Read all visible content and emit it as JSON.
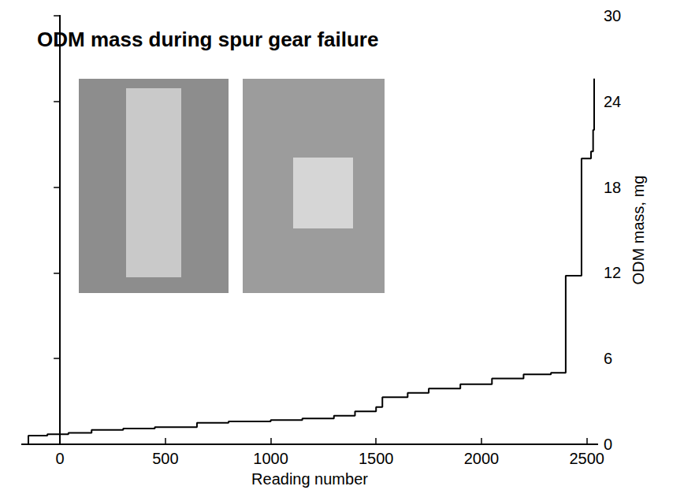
{
  "chart_data": {
    "type": "step",
    "title": "ODM mass during spur gear failure",
    "x_label": "Reading number",
    "y_label": "ODM mass, mg",
    "x": [
      -164,
      -150,
      -60,
      40,
      150,
      300,
      450,
      650,
      800,
      1000,
      1150,
      1300,
      1400,
      1500,
      1530,
      1650,
      1750,
      1900,
      2050,
      2200,
      2330,
      2395,
      2400,
      2470,
      2475,
      2520,
      2530,
      2535
    ],
    "values": [
      0,
      0.6,
      0.7,
      0.8,
      1.0,
      1.1,
      1.2,
      1.5,
      1.6,
      1.7,
      1.8,
      2.0,
      2.3,
      2.6,
      3.3,
      3.6,
      3.9,
      4.2,
      4.6,
      4.9,
      5.0,
      5.0,
      11.8,
      11.8,
      20.0,
      20.5,
      22.0,
      25.6
    ],
    "color": "#000000",
    "line_style": "solid",
    "marker": "none",
    "xlim": [
      -180,
      2550
    ],
    "xticks": [
      0,
      500,
      1000,
      1500,
      2000,
      2500
    ],
    "ylim": [
      0,
      30
    ],
    "yticks": [
      0,
      6,
      12,
      18,
      24,
      30
    ],
    "grid": false
  }
}
